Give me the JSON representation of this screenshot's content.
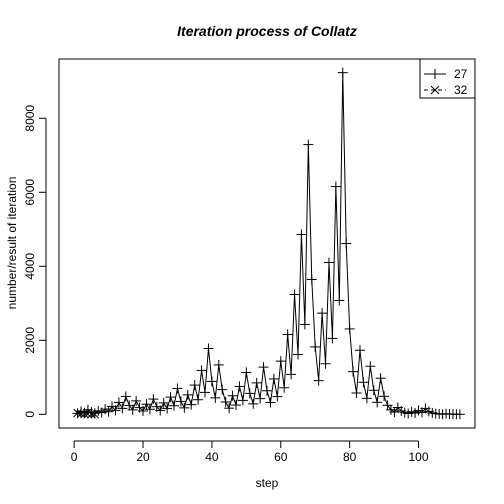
{
  "chart_data": {
    "type": "line",
    "title": "Iteration process of Collatz",
    "xlabel": "step",
    "ylabel": "number/result of iteration",
    "xlim": [
      0,
      112
    ],
    "ylim": [
      0,
      9232
    ],
    "xticks": [
      "0",
      "20",
      "40",
      "60",
      "80",
      "100"
    ],
    "yticks": [
      "0",
      "2000",
      "4000",
      "6000",
      "8000"
    ],
    "legend_position": "top-right",
    "series": [
      {
        "name": "27",
        "marker": "plus",
        "line": "solid",
        "values": [
          27,
          82,
          41,
          124,
          62,
          31,
          94,
          47,
          142,
          71,
          214,
          107,
          322,
          161,
          484,
          242,
          121,
          364,
          182,
          91,
          274,
          137,
          412,
          206,
          103,
          310,
          155,
          466,
          233,
          700,
          350,
          175,
          526,
          263,
          790,
          395,
          1186,
          593,
          1780,
          890,
          445,
          1336,
          668,
          334,
          167,
          502,
          251,
          754,
          377,
          1132,
          566,
          283,
          850,
          425,
          1276,
          638,
          319,
          958,
          479,
          1438,
          719,
          2158,
          1079,
          3238,
          1619,
          4858,
          2429,
          7288,
          3644,
          1822,
          911,
          2734,
          1367,
          4102,
          2051,
          6154,
          3077,
          9232,
          4616,
          2308,
          1154,
          577,
          1732,
          866,
          433,
          1300,
          650,
          325,
          976,
          488,
          244,
          122,
          61,
          184,
          92,
          46,
          23,
          70,
          35,
          106,
          53,
          160,
          80,
          40,
          20,
          10,
          5,
          16,
          8,
          4,
          2,
          1
        ]
      },
      {
        "name": "32",
        "marker": "cross",
        "line": "dashed",
        "values": [
          32,
          16,
          8,
          4,
          2,
          1
        ]
      }
    ]
  }
}
